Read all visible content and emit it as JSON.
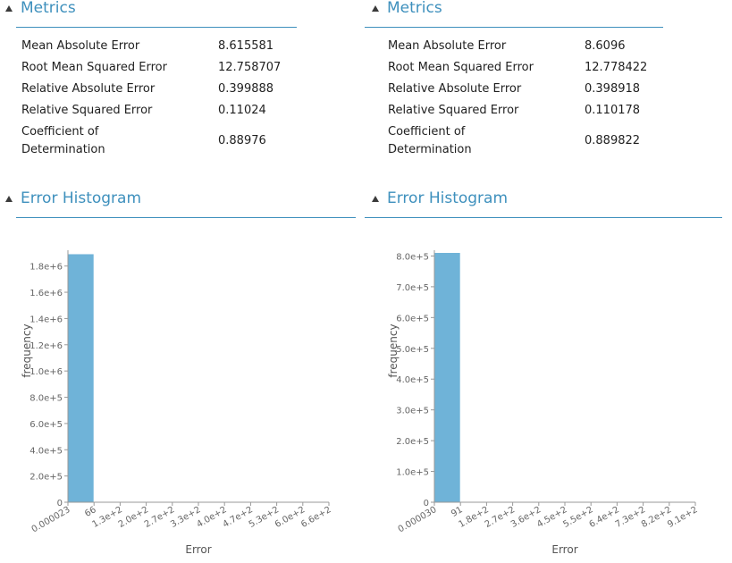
{
  "panels": [
    {
      "metrics_title": "Metrics",
      "metrics": [
        {
          "name": "Mean Absolute Error",
          "value": "8.615581"
        },
        {
          "name": "Root Mean Squared Error",
          "value": "12.758707"
        },
        {
          "name": "Relative Absolute Error",
          "value": "0.399888"
        },
        {
          "name": "Relative Squared Error",
          "value": "0.11024"
        },
        {
          "name": "Coefficient of Determination",
          "value": "0.88976"
        }
      ],
      "histogram_title": "Error Histogram"
    },
    {
      "metrics_title": "Metrics",
      "metrics": [
        {
          "name": "Mean Absolute Error",
          "value": "8.6096"
        },
        {
          "name": "Root Mean Squared Error",
          "value": "12.778422"
        },
        {
          "name": "Relative Absolute Error",
          "value": "0.398918"
        },
        {
          "name": "Relative Squared Error",
          "value": "0.110178"
        },
        {
          "name": "Coefficient of Determination",
          "value": "0.889822"
        }
      ],
      "histogram_title": "Error Histogram"
    }
  ],
  "colors": {
    "accent": "#3e90bd",
    "bar": "#6fb3d8",
    "axis": "#999999",
    "tick_text": "#666666"
  },
  "chart_data": [
    {
      "type": "bar",
      "title": "Error Histogram",
      "xlabel": "Error",
      "ylabel": "frequency",
      "x_tick_labels": [
        "0.000023",
        "66",
        "1.3e+2",
        "2.0e+2",
        "2.7e+2",
        "3.3e+2",
        "4.0e+2",
        "4.7e+2",
        "5.3e+2",
        "6.0e+2",
        "6.6e+2"
      ],
      "y_tick_labels": [
        "0",
        "2.0e+5",
        "4.0e+5",
        "6.0e+5",
        "8.0e+5",
        "1.0e+6",
        "1.2e+6",
        "1.4e+6",
        "1.6e+6",
        "1.8e+6"
      ],
      "y_ticks": [
        0,
        200000,
        400000,
        600000,
        800000,
        1000000,
        1200000,
        1400000,
        1600000,
        1800000
      ],
      "ylim": [
        0,
        1900000
      ],
      "bins": [
        {
          "from": "0.000023",
          "to": "66",
          "value": 1890000
        },
        {
          "from": "66",
          "to": "1.3e+2",
          "value": 0
        },
        {
          "from": "1.3e+2",
          "to": "2.0e+2",
          "value": 0
        },
        {
          "from": "2.0e+2",
          "to": "2.7e+2",
          "value": 0
        },
        {
          "from": "2.7e+2",
          "to": "3.3e+2",
          "value": 0
        },
        {
          "from": "3.3e+2",
          "to": "4.0e+2",
          "value": 0
        },
        {
          "from": "4.0e+2",
          "to": "4.7e+2",
          "value": 0
        },
        {
          "from": "4.7e+2",
          "to": "5.3e+2",
          "value": 0
        },
        {
          "from": "5.3e+2",
          "to": "6.0e+2",
          "value": 0
        },
        {
          "from": "6.0e+2",
          "to": "6.6e+2",
          "value": 0
        }
      ],
      "grid": false
    },
    {
      "type": "bar",
      "title": "Error Histogram",
      "xlabel": "Error",
      "ylabel": "frequency",
      "x_tick_labels": [
        "0.000030",
        "91",
        "1.8e+2",
        "2.7e+2",
        "3.6e+2",
        "4.5e+2",
        "5.5e+2",
        "6.4e+2",
        "7.3e+2",
        "8.2e+2",
        "9.1e+2"
      ],
      "y_tick_labels": [
        "0",
        "1.0e+5",
        "2.0e+5",
        "3.0e+5",
        "4.0e+5",
        "5.0e+5",
        "6.0e+5",
        "7.0e+5",
        "8.0e+5"
      ],
      "y_ticks": [
        0,
        100000,
        200000,
        300000,
        400000,
        500000,
        600000,
        700000,
        800000
      ],
      "ylim": [
        0,
        810000
      ],
      "bins": [
        {
          "from": "0.000030",
          "to": "91",
          "value": 810000
        },
        {
          "from": "91",
          "to": "1.8e+2",
          "value": 0
        },
        {
          "from": "1.8e+2",
          "to": "2.7e+2",
          "value": 0
        },
        {
          "from": "2.7e+2",
          "to": "3.6e+2",
          "value": 0
        },
        {
          "from": "3.6e+2",
          "to": "4.5e+2",
          "value": 0
        },
        {
          "from": "4.5e+2",
          "to": "5.5e+2",
          "value": 0
        },
        {
          "from": "5.5e+2",
          "to": "6.4e+2",
          "value": 0
        },
        {
          "from": "6.4e+2",
          "to": "7.3e+2",
          "value": 0
        },
        {
          "from": "7.3e+2",
          "to": "8.2e+2",
          "value": 0
        },
        {
          "from": "8.2e+2",
          "to": "9.1e+2",
          "value": 0
        }
      ],
      "grid": false
    }
  ]
}
